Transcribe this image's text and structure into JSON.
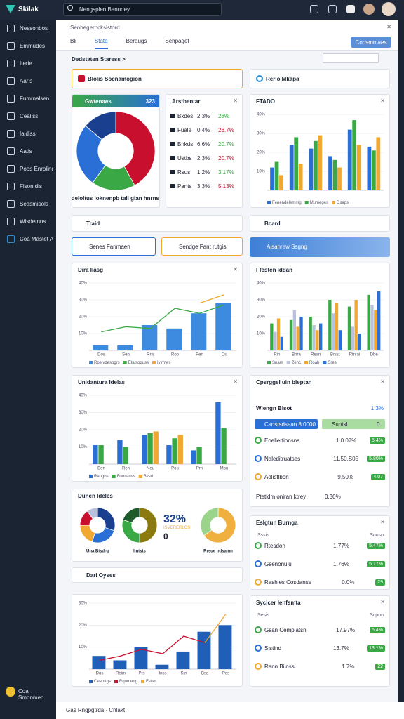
{
  "app": {
    "brand": "Skilak",
    "search": "Nengsplen Benndey",
    "breadcrumb": "Senhegerncksistord",
    "section": "Dedstaten Staress >",
    "button": "Consmmaes",
    "footer": "Gas Rngpgtrda · Cnlakt"
  },
  "sidebar": [
    "Nessonbos",
    "Emmudes",
    "Iterie",
    "Aarls",
    "Fumrnalsen",
    "Cealiss",
    "Ialdiss",
    "Aatis",
    "Poos Enrolinds",
    "Fison dls",
    "Seasmisols",
    "Wisdemns",
    "Coa Mastet Aues"
  ],
  "sidebar_footer": "Coa Smonmec",
  "tabs": [
    "Bli",
    "Stata",
    "Beraugs",
    "Sehpaget"
  ],
  "cards": {
    "blolis": "Blolis Socnamogion",
    "rerio": "Rerio Mkapa",
    "traid": "Traid",
    "bcard": "Bcard",
    "chips": [
      "Senes Fanmaen",
      "Sendge Fant rutgis",
      "Aisanrew Ssgng"
    ],
    "dunen": "Dunen Ideles",
    "dari": "Dari Oyses"
  },
  "donut_panel": {
    "header": "Gwtenaes",
    "badge": "323"
  },
  "big_stat": {
    "value": "32%",
    "sub": "ISVERERLOS",
    "zero": "0"
  },
  "stat_table": {
    "title": "Arstbentar",
    "rows": [
      [
        "Bxdes",
        "2.3%",
        "28%"
      ],
      [
        "Fuale",
        "0.4%",
        "26.7%"
      ],
      [
        "Bnkds",
        "6.6%",
        "20.7%"
      ],
      [
        "Ustbs",
        "2.3%",
        "20.7%"
      ],
      [
        "Rsus",
        "1.2%",
        "3.17%"
      ],
      [
        "Pants",
        "3.3%",
        "5.13%"
      ]
    ]
  },
  "cpsrggel": {
    "title": "Cpsrggel uin bleptan",
    "subtitle": "Wiengn Blsot",
    "subvalue": "1.3%",
    "tags": [
      "Csnstsdsean 8.0000",
      "Suntsl"
    ],
    "tag_value": "0",
    "rows": [
      [
        "Eoeliertionsns",
        "1.0.07%",
        "5.4%"
      ],
      [
        "Naleditruatses",
        "11.50.S05",
        "5.80%"
      ],
      [
        "Aolistlbon",
        "9.50%",
        "4.07"
      ]
    ],
    "foot": [
      "Ptetidm oniran ktrey",
      "0.30%"
    ]
  },
  "eslgtun": {
    "title": "Eslgtun Burnga",
    "head": [
      "Sssis",
      "Sonso"
    ],
    "rows": [
      [
        "Rtesdon",
        "1.77%",
        "5.47%"
      ],
      [
        "Gsenonuiu",
        "1.76%",
        "5.17%"
      ],
      [
        "Rashles Cosdanse",
        "0.0%",
        "29"
      ]
    ]
  },
  "sydcer": {
    "title": "Sycicer lenfsmta",
    "head": [
      "Sesis",
      "Scpon"
    ],
    "rows": [
      [
        "Gsan Cemplatsn",
        "17.97%",
        "5.4%"
      ],
      [
        "Sistind",
        "13.7%",
        "13.1%"
      ],
      [
        "Rann Bilnssl",
        "1.7%",
        "22"
      ]
    ]
  },
  "chart_data": [
    {
      "type": "pie",
      "values": [
        42,
        18,
        26,
        14
      ],
      "colors": [
        "#c8102e",
        "#3aa845",
        "#2a6fd6",
        "#1b3f8f"
      ],
      "caption": "Dedeloltus loknenpb tall gian hnrnsmlj"
    },
    {
      "type": "bar",
      "title": "FTADO",
      "categories": [
        null,
        null,
        null,
        null,
        null,
        null
      ],
      "ylim": [
        0,
        40
      ],
      "yticks": [
        {
          "value": 10,
          "label": "10%"
        },
        {
          "value": 20,
          "label": "20%"
        },
        {
          "value": 30,
          "label": "30%"
        },
        {
          "value": 40,
          "label": "40%"
        }
      ],
      "grid": true,
      "series": [
        {
          "name": "Fenendelemmg",
          "color": "#2a6fd6",
          "values": [
            12,
            24,
            22,
            18,
            32,
            23
          ]
        },
        {
          "name": "Mumeges",
          "color": "#3aa845",
          "values": [
            15,
            28,
            26,
            16,
            37,
            21
          ]
        },
        {
          "name": "Dsaps",
          "color": "#f0a830",
          "values": [
            8,
            14,
            29,
            12,
            24,
            28
          ]
        }
      ]
    },
    {
      "type": "combo",
      "title": "Dira Ilasg",
      "categories": [
        "Dos",
        "Sen",
        "Rris",
        "Roo",
        "Pen",
        "Ds"
      ],
      "ylim": [
        0,
        40
      ],
      "yticks": [
        {
          "value": 10,
          "label": "10%"
        },
        {
          "value": 20,
          "label": "20%"
        },
        {
          "value": 30,
          "label": "30%"
        },
        {
          "value": 40,
          "label": "40%"
        }
      ],
      "grid": true,
      "series": [
        {
          "name": "Rpelvdesbgrs",
          "color": "#3d8be0",
          "type": "bar",
          "values": [
            3,
            3,
            15,
            13,
            22,
            28
          ]
        },
        {
          "name": "Etalsoquss",
          "color": "#3aa845",
          "type": "line",
          "values": [
            11,
            14,
            13,
            25,
            22,
            27
          ]
        },
        {
          "name": "Ivirmes",
          "color": "#f0a830",
          "type": "line",
          "values": [
            null,
            null,
            null,
            null,
            28,
            33
          ]
        }
      ]
    },
    {
      "type": "bar",
      "title": "Ffesten Iddan",
      "categories": [
        "Rin",
        "Bnra",
        "Resn",
        "Brsst",
        "Rtrsai",
        "Dbe"
      ],
      "ylim": [
        0,
        40
      ],
      "yticks": [
        {
          "value": 10,
          "label": "10%"
        },
        {
          "value": 20,
          "label": "20%"
        },
        {
          "value": 30,
          "label": "30%"
        },
        {
          "value": 40,
          "label": "40%"
        }
      ],
      "grid": true,
      "series": [
        {
          "name": "Snam",
          "color": "#3aa845",
          "values": [
            16,
            18,
            20,
            30,
            26,
            33
          ]
        },
        {
          "name": "Zenc",
          "color": "#b8c2dc",
          "values": [
            11,
            24,
            15,
            22,
            14,
            27
          ]
        },
        {
          "name": "Roab",
          "color": "#f0a830",
          "values": [
            19,
            14,
            12,
            28,
            30,
            24
          ]
        },
        {
          "name": "Sres",
          "color": "#2a6fd6",
          "values": [
            8,
            20,
            16,
            12,
            10,
            35
          ]
        }
      ]
    },
    {
      "type": "bar",
      "title": "Unidantura Idelas",
      "categories": [
        "Ben",
        "Ren",
        "Neu",
        "Pou",
        "Prn",
        "Mon"
      ],
      "ylim": [
        0,
        40
      ],
      "yticks": [
        {
          "value": 10,
          "label": "10%"
        },
        {
          "value": 20,
          "label": "20%"
        },
        {
          "value": 30,
          "label": "30%"
        },
        {
          "value": 40,
          "label": "40%"
        }
      ],
      "grid": true,
      "series": [
        {
          "name": "Rangns",
          "color": "#2a6fd6",
          "values": [
            11,
            14,
            17,
            11,
            8,
            36
          ]
        },
        {
          "name": "Fomlanss",
          "color": "#3aa845",
          "values": [
            11,
            10,
            18,
            15,
            10,
            21
          ]
        },
        {
          "name": "Bvsd",
          "color": "#f0a830",
          "values": [
            null,
            null,
            19,
            17,
            null,
            null
          ]
        }
      ]
    },
    {
      "type": "combo",
      "title": "Dari Oyses",
      "categories": [
        "Dos",
        "Reim",
        "Prs",
        "Inss",
        "Stn",
        "Bsd",
        "Pes"
      ],
      "ylim": [
        0,
        30
      ],
      "yticks": [
        {
          "value": 10,
          "label": "10%"
        },
        {
          "value": 20,
          "label": "20%"
        },
        {
          "value": 30,
          "label": "30%"
        }
      ],
      "grid": true,
      "series": [
        {
          "name": "Ceenttgs",
          "color": "#1f5fb8",
          "type": "bar",
          "values": [
            6,
            4,
            10,
            2,
            8,
            17,
            20
          ]
        },
        {
          "name": "Rqumeng",
          "color": "#c8102e",
          "type": "line",
          "values": [
            4,
            6,
            9,
            7,
            15,
            12,
            null
          ]
        },
        {
          "name": "Fstsn",
          "color": "#f0a830",
          "type": "line",
          "values": [
            null,
            null,
            null,
            null,
            null,
            12,
            25
          ]
        }
      ]
    },
    {
      "type": "pie",
      "values": [
        30,
        25,
        20,
        15,
        10
      ],
      "colors": [
        "#1b3f8f",
        "#2a6fd6",
        "#f0a830",
        "#c8102e",
        "#b8c2dc"
      ],
      "caption": "Una Bisdrg"
    },
    {
      "type": "pie",
      "values": [
        50,
        30,
        20
      ],
      "colors": [
        "#8a7a10",
        "#3aa845",
        "#1e5a2a"
      ],
      "caption": "Imtsts"
    },
    {
      "type": "pie",
      "values": [
        65,
        35
      ],
      "colors": [
        "#f0b040",
        "#9ad38a"
      ],
      "caption": "Rrsue ndsaiun"
    }
  ]
}
